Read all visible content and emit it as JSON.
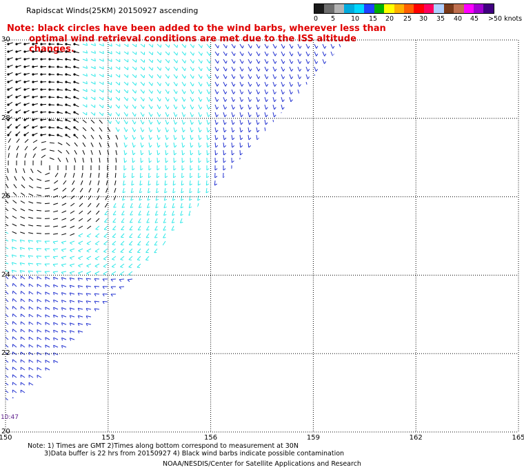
{
  "header": {
    "title": "Rapidscat Winds(25KM) 20150927 ascending",
    "note_line1": "Note: black circles have been added to the wind barbs, wherever less than",
    "note_line2": "optimal wind retrieval conditions are met due to the ISS altitude changes."
  },
  "legend": {
    "unit": ">50 knots",
    "labels": [
      "0",
      "5",
      "10",
      "15",
      "20",
      "25",
      "30",
      "35",
      "40",
      "45",
      ">50 knots"
    ],
    "colors": [
      "#1a1a1a",
      "#6e6e6e",
      "#b4b4b4",
      "#00aadd",
      "#00d8ff",
      "#2040ff",
      "#00b000",
      "#ffff00",
      "#ffb000",
      "#ff6000",
      "#ff0000",
      "#ff0060",
      "#b0d0ff",
      "#7a3a1a",
      "#c07050",
      "#ff00ff",
      "#a000d0",
      "#400080"
    ]
  },
  "map": {
    "x_ticks": [
      "150",
      "153",
      "156",
      "159",
      "162",
      "165"
    ],
    "y_ticks": [
      "30",
      "28",
      "26",
      "24",
      "22",
      "20"
    ],
    "time_label": "10:47"
  },
  "wind_colors": {
    "light": "#000000",
    "moderate": "#2ee8e8",
    "strong": "#2030d0"
  },
  "footer": {
    "note_line1": "Note: 1) Times are GMT 2)Times along bottom correspond to measurement at 30N",
    "note_line2": "3)Data buffer is 22 hrs from 20150927 4) Black wind barbs indicate possible contamination",
    "credit": "NOAA/NESDIS/Center for Satellite Applications and Research"
  }
}
